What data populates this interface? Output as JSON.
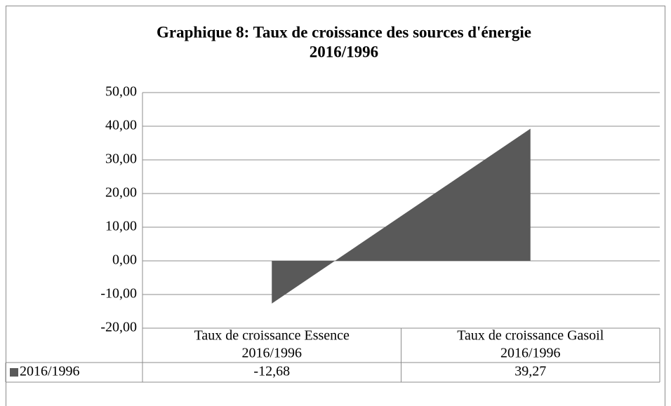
{
  "chart_data": {
    "type": "area",
    "title": [
      "Graphique 8: Taux de croissance des sources d'énergie",
      "2016/1996"
    ],
    "categories": [
      [
        "Taux de croissance Essence",
        "2016/1996"
      ],
      [
        "Taux de croissance Gasoil",
        "2016/1996"
      ]
    ],
    "series": [
      {
        "name": "2016/1996",
        "color": "#595959",
        "values": [
          -12.68,
          39.27
        ],
        "value_labels": [
          "-12,68",
          "39,27"
        ]
      }
    ],
    "ylim": [
      -20,
      50
    ],
    "yticks": [
      {
        "value": -20,
        "label": "-20,00"
      },
      {
        "value": -10,
        "label": "-10,00"
      },
      {
        "value": 0,
        "label": "0,00"
      },
      {
        "value": 10,
        "label": "10,00"
      },
      {
        "value": 20,
        "label": "20,00"
      },
      {
        "value": 30,
        "label": "30,00"
      },
      {
        "value": 40,
        "label": "40,00"
      },
      {
        "value": 50,
        "label": "50,00"
      }
    ],
    "grid": true
  }
}
